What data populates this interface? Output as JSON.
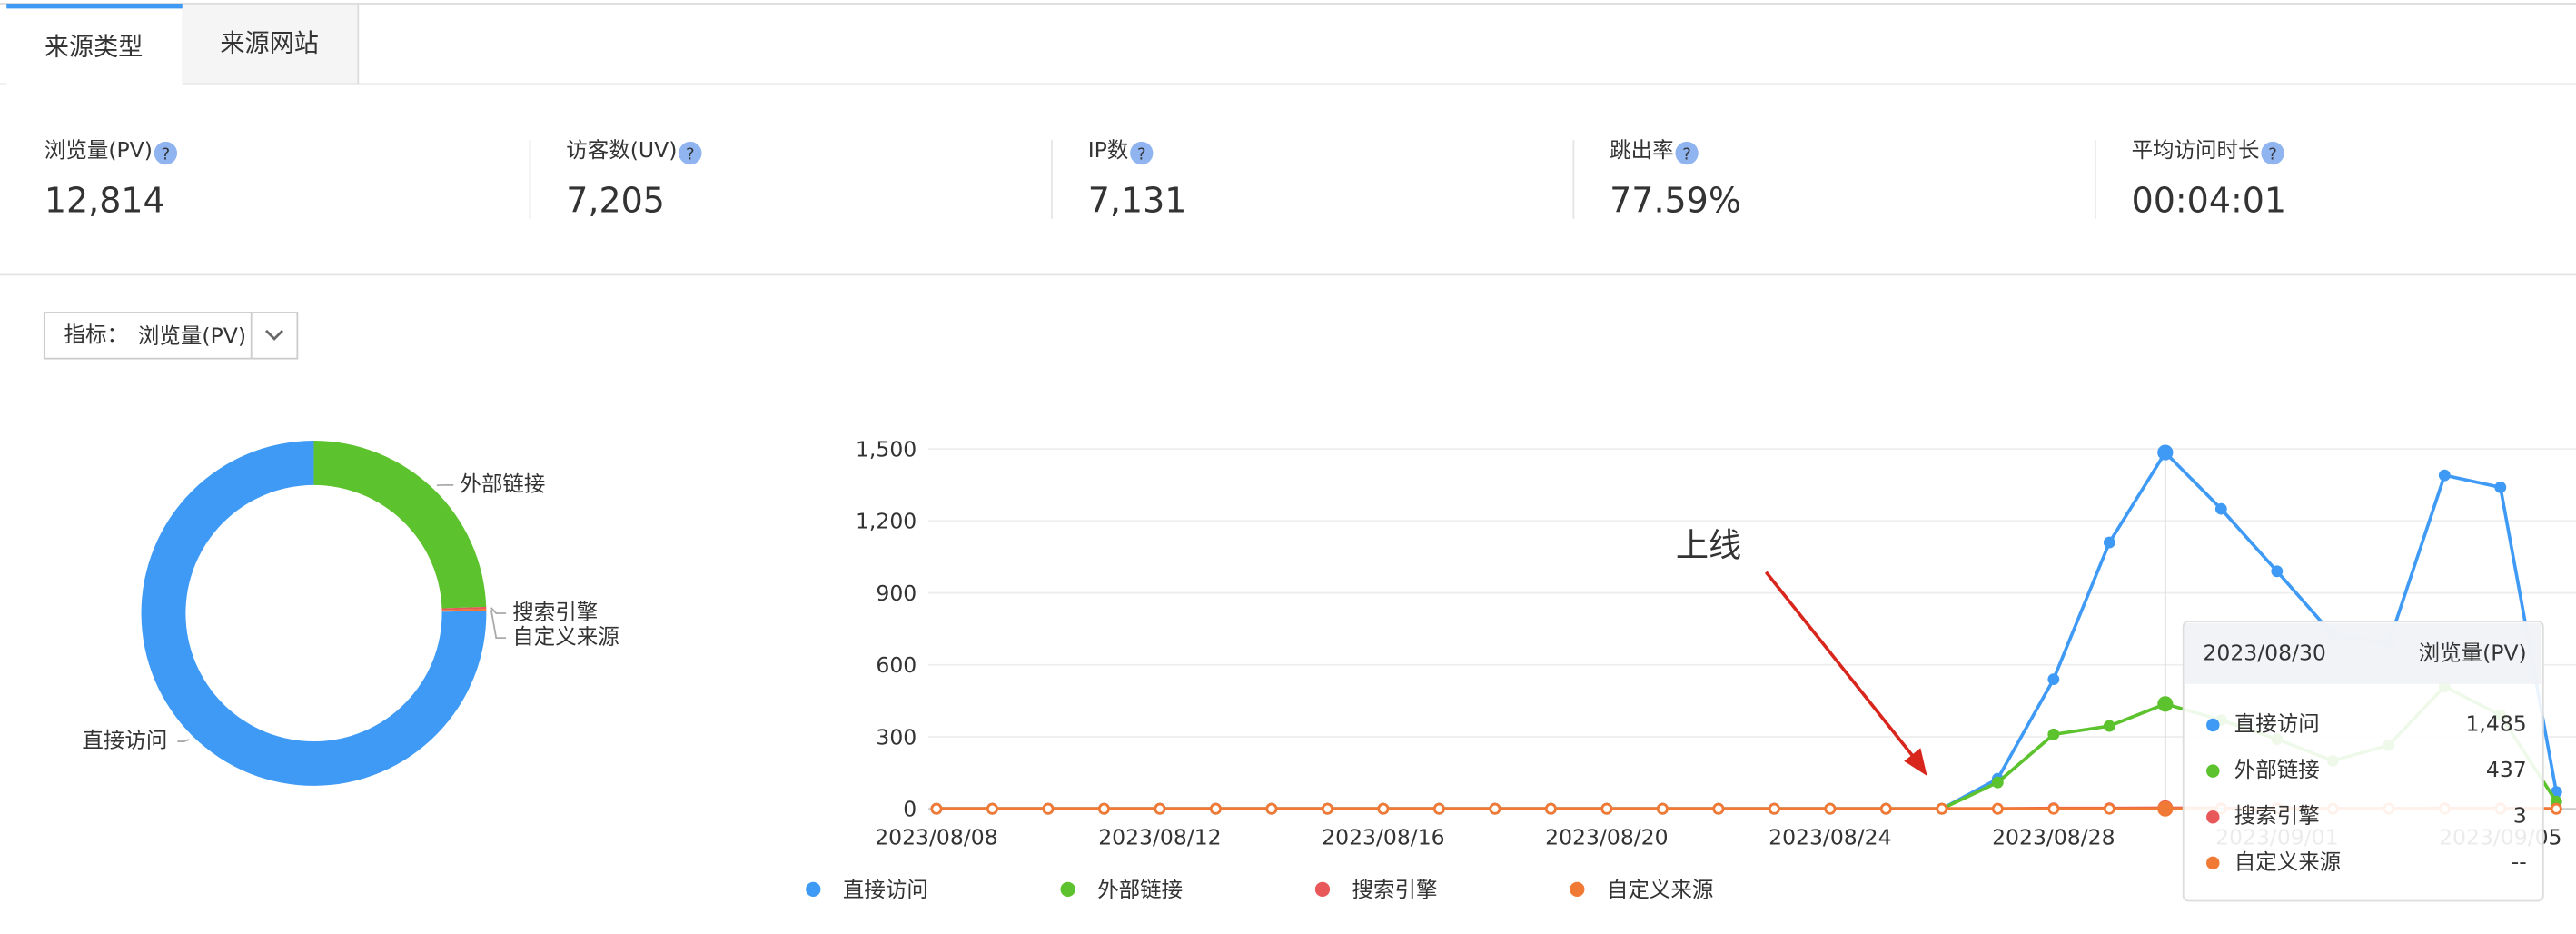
{
  "tabs": [
    "来源类型",
    "来源网站"
  ],
  "metrics": [
    {
      "label": "浏览量(PV)",
      "value": "12,814"
    },
    {
      "label": "访客数(UV)",
      "value": "7,205"
    },
    {
      "label": "IP数",
      "value": "7,131"
    },
    {
      "label": "跳出率",
      "value": "77.59%"
    },
    {
      "label": "平均访问时长",
      "value": "00:04:01"
    }
  ],
  "selector": {
    "label": "指标：",
    "value": "浏览量(PV)"
  },
  "chart_data": [
    {
      "type": "pie",
      "categories": [
        "外部链接",
        "搜索引擎",
        "自定义来源",
        "直接访问"
      ],
      "values": [
        24.4,
        0.2,
        0.2,
        75.2
      ],
      "colors": [
        "#5cc22d",
        "#e8585a",
        "#f07a35",
        "#3e9af5"
      ]
    },
    {
      "type": "line",
      "x": [
        "2023/08/08",
        null,
        null,
        null,
        "2023/08/12",
        null,
        null,
        null,
        "2023/08/16",
        null,
        null,
        null,
        "2023/08/20",
        null,
        null,
        null,
        "2023/08/24",
        null,
        null,
        null,
        "2023/08/28",
        null,
        null,
        null,
        "2023/09/01",
        null,
        null,
        null,
        "2023/09/05",
        null
      ],
      "series": [
        {
          "name": "直接访问",
          "color": "#3e9af5",
          "values": [
            0,
            0,
            0,
            0,
            0,
            0,
            0,
            0,
            0,
            0,
            0,
            0,
            0,
            0,
            0,
            0,
            0,
            0,
            0,
            125,
            540,
            1110,
            1485,
            1250,
            990,
            725,
            690,
            1390,
            1340,
            70
          ]
        },
        {
          "name": "外部链接",
          "color": "#5cc22d",
          "values": [
            0,
            0,
            0,
            0,
            0,
            0,
            0,
            0,
            0,
            0,
            0,
            0,
            0,
            0,
            0,
            0,
            0,
            0,
            0,
            110,
            310,
            345,
            437,
            370,
            290,
            200,
            265,
            510,
            390,
            30
          ]
        },
        {
          "name": "搜索引擎",
          "color": "#e8585a",
          "values": [
            0,
            0,
            0,
            0,
            0,
            0,
            0,
            0,
            0,
            0,
            0,
            0,
            0,
            0,
            0,
            0,
            0,
            0,
            0,
            0,
            2,
            2,
            3,
            2,
            2,
            1,
            1,
            2,
            2,
            0
          ]
        },
        {
          "name": "自定义来源",
          "color": "#f07a35",
          "values": [
            0,
            0,
            0,
            0,
            0,
            0,
            0,
            0,
            0,
            0,
            0,
            0,
            0,
            0,
            0,
            0,
            0,
            0,
            0,
            0,
            0,
            0,
            0,
            0,
            0,
            0,
            0,
            0,
            0,
            0
          ]
        }
      ],
      "ylim": [
        0,
        1500
      ],
      "yticks": [
        0,
        300,
        600,
        900,
        {
          "value": 1200,
          "label": "1,200"
        },
        {
          "value": 1500,
          "label": "1,500"
        }
      ],
      "grid": true,
      "annotation": "上线",
      "tooltip": {
        "date": "2023/08/30",
        "metric": "浏览量(PV)",
        "rows": [
          {
            "name": "直接访问",
            "value": "1,485"
          },
          {
            "name": "外部链接",
            "value": "437"
          },
          {
            "name": "搜索引擎",
            "value": "3"
          },
          {
            "name": "自定义来源",
            "value": "--"
          }
        ]
      }
    }
  ]
}
